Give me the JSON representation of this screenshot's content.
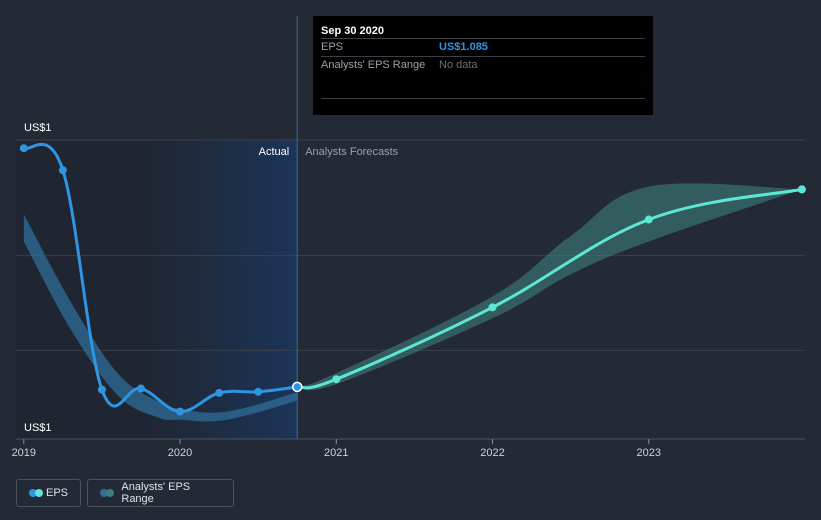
{
  "chart_data": {
    "type": "line",
    "y_top_label": "US$1",
    "y_bottom_label": "US$1",
    "x_ticks": [
      "2019",
      "2020",
      "2021",
      "2022",
      "2023"
    ],
    "region_labels": {
      "actual": "Actual",
      "forecast": "Analysts Forecasts"
    },
    "series": [
      {
        "name": "EPS",
        "color": "#2f95e3",
        "points": [
          {
            "x": 2019.0,
            "y": 1.52
          },
          {
            "x": 2019.25,
            "y": 1.48
          },
          {
            "x": 2019.5,
            "y": 1.08
          },
          {
            "x": 2019.75,
            "y": 1.082
          },
          {
            "x": 2020.0,
            "y": 1.04
          },
          {
            "x": 2020.25,
            "y": 1.074
          },
          {
            "x": 2020.5,
            "y": 1.076
          },
          {
            "x": 2020.75,
            "y": 1.085
          }
        ]
      },
      {
        "name": "EPS forecast",
        "color": "#5ee6d4",
        "points": [
          {
            "x": 2020.75,
            "y": 1.085
          },
          {
            "x": 2021.0,
            "y": 1.099
          },
          {
            "x": 2022.0,
            "y": 1.23
          },
          {
            "x": 2023.0,
            "y": 1.39
          },
          {
            "x": 2023.98,
            "y": 1.445
          }
        ]
      }
    ],
    "analyst_range": {
      "name": "Analysts' EPS Range",
      "forecast": [
        {
          "x": 2020.75,
          "low": 1.085,
          "high": 1.085
        },
        {
          "x": 2021.0,
          "low": 1.09,
          "high": 1.11
        },
        {
          "x": 2022.0,
          "low": 1.21,
          "high": 1.25
        },
        {
          "x": 2022.5,
          "low": 1.29,
          "high": 1.36
        },
        {
          "x": 2023.0,
          "low": 1.35,
          "high": 1.45
        },
        {
          "x": 2023.98,
          "low": 1.445,
          "high": 1.445
        }
      ],
      "history": [
        {
          "x": 2019.0,
          "low": 1.35,
          "high": 1.4
        },
        {
          "x": 2019.3,
          "low": 1.19,
          "high": 1.24
        },
        {
          "x": 2019.6,
          "low": 1.07,
          "high": 1.11
        },
        {
          "x": 2019.85,
          "low": 1.03,
          "high": 1.06
        },
        {
          "x": 2020.0,
          "low": 1.025,
          "high": 1.045
        },
        {
          "x": 2020.3,
          "low": 1.025,
          "high": 1.04
        },
        {
          "x": 2020.75,
          "low": 1.06,
          "high": 1.075
        }
      ]
    },
    "x_range": [
      2018.95,
      2024.0
    ],
    "y_range": [
      0.99,
      1.535
    ],
    "highlight_x": 2020.75,
    "grid": true
  },
  "tooltip": {
    "date": "Sep 30 2020",
    "rows": [
      {
        "label": "EPS",
        "value": "US$1.085"
      },
      {
        "label": "Analysts' EPS Range",
        "value": "No data"
      }
    ]
  },
  "legend": {
    "items": [
      {
        "label": "EPS",
        "colors": [
          "#2f95e3",
          "#5ee6d4"
        ]
      },
      {
        "label": "Analysts' EPS Range",
        "colors": [
          "#2f6d9a",
          "#3d7f7a"
        ]
      }
    ]
  },
  "colors": {
    "background": "#232a36",
    "actual_shade": "#1c3458",
    "grid": "#3a414d"
  }
}
